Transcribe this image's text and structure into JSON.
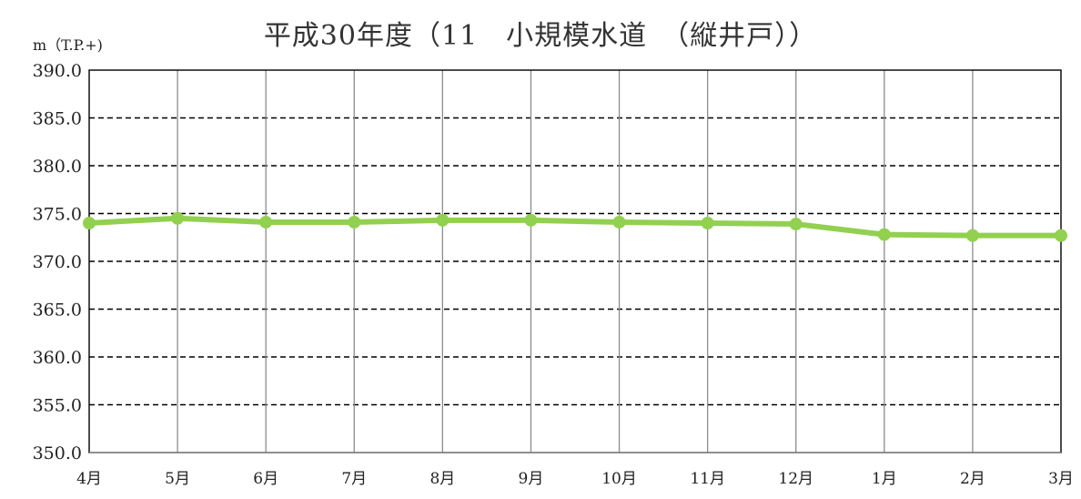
{
  "chart_data": {
    "type": "line",
    "title": "平成30年度（11　小規模水道　（縦井戸））",
    "ylabel": "m（T.P.+)",
    "xlabel": "",
    "categories": [
      "4月",
      "5月",
      "6月",
      "7月",
      "8月",
      "9月",
      "10月",
      "11月",
      "12月",
      "1月",
      "2月",
      "3月"
    ],
    "series": [
      {
        "values": [
          374.0,
          374.5,
          374.1,
          374.1,
          374.3,
          374.3,
          374.1,
          374.0,
          373.9,
          372.8,
          372.7,
          372.7
        ]
      }
    ],
    "ylim": [
      350.0,
      390.0
    ],
    "yticks": [
      "390.0",
      "385.0",
      "380.0",
      "375.0",
      "370.0",
      "365.0",
      "360.0",
      "355.0",
      "350.0"
    ],
    "grid": {
      "horizontal": "dashed",
      "vertical": "solid"
    },
    "line_color": "#92d050",
    "legend": "none"
  }
}
